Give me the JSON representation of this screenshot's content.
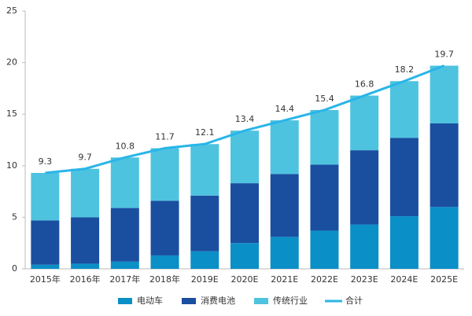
{
  "chart_data": {
    "type": "bar",
    "stacked": true,
    "categories": [
      "2015年",
      "2016年",
      "2017年",
      "2018年",
      "2019E",
      "2020E",
      "2021E",
      "2022E",
      "2023E",
      "2024E",
      "2025E"
    ],
    "series": [
      {
        "name": "电动车",
        "color": "#0a8fc7",
        "values": [
          0.4,
          0.5,
          0.7,
          1.3,
          1.7,
          2.5,
          3.1,
          3.7,
          4.3,
          5.1,
          6.0
        ]
      },
      {
        "name": "消费电池",
        "color": "#1a4fa0",
        "values": [
          4.3,
          4.5,
          5.2,
          5.3,
          5.4,
          5.8,
          6.1,
          6.4,
          7.2,
          7.6,
          8.1
        ]
      },
      {
        "name": "传统行业",
        "color": "#4ec3e0",
        "values": [
          4.6,
          4.7,
          4.9,
          5.1,
          5.0,
          5.1,
          5.2,
          5.3,
          5.3,
          5.5,
          5.6
        ]
      },
      {
        "name": "合计",
        "color": "#29b5e8",
        "type": "line",
        "values": [
          9.3,
          9.7,
          10.8,
          11.7,
          12.1,
          13.4,
          14.4,
          15.4,
          16.8,
          18.2,
          19.7
        ]
      }
    ],
    "ylim": [
      0,
      25
    ],
    "yticks": [
      0,
      5,
      10,
      15,
      20,
      25
    ],
    "grid": false,
    "legend": "bottom"
  }
}
